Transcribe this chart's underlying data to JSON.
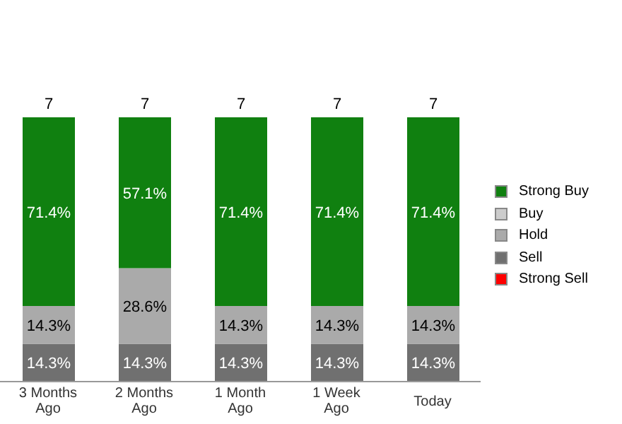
{
  "chart_data": {
    "type": "bar",
    "stacked": true,
    "legend": "right",
    "categories": [
      "3 Months Ago",
      "2 Months Ago",
      "1 Month Ago",
      "1 Week Ago",
      "Today"
    ],
    "series": [
      {
        "name": "Strong Sell",
        "color": "#ff0000",
        "values": [
          0,
          0,
          0,
          0,
          0
        ],
        "value_labels": [
          null,
          null,
          null,
          null,
          null
        ]
      },
      {
        "name": "Sell",
        "color": "#707070",
        "values": [
          14.3,
          14.3,
          14.3,
          14.3,
          14.3
        ],
        "value_labels": [
          "14.3%",
          "14.3%",
          "14.3%",
          "14.3%",
          "14.3%"
        ]
      },
      {
        "name": "Hold",
        "color": "#aaaaaa",
        "values": [
          14.3,
          28.6,
          14.3,
          14.3,
          14.3
        ],
        "value_labels": [
          "14.3%",
          "28.6%",
          "14.3%",
          "14.3%",
          "14.3%"
        ]
      },
      {
        "name": "Buy",
        "color": "#cccccc",
        "values": [
          0,
          0,
          0,
          0,
          0
        ],
        "value_labels": [
          null,
          null,
          null,
          null,
          null
        ]
      },
      {
        "name": "Strong Buy",
        "color": "#108010",
        "values": [
          71.4,
          57.1,
          71.4,
          71.4,
          71.4
        ],
        "value_labels": [
          "71.4%",
          "57.1%",
          "71.4%",
          "71.4%",
          "71.4%"
        ]
      }
    ],
    "annotations": [
      "7",
      "7",
      "7",
      "7",
      "7"
    ]
  }
}
